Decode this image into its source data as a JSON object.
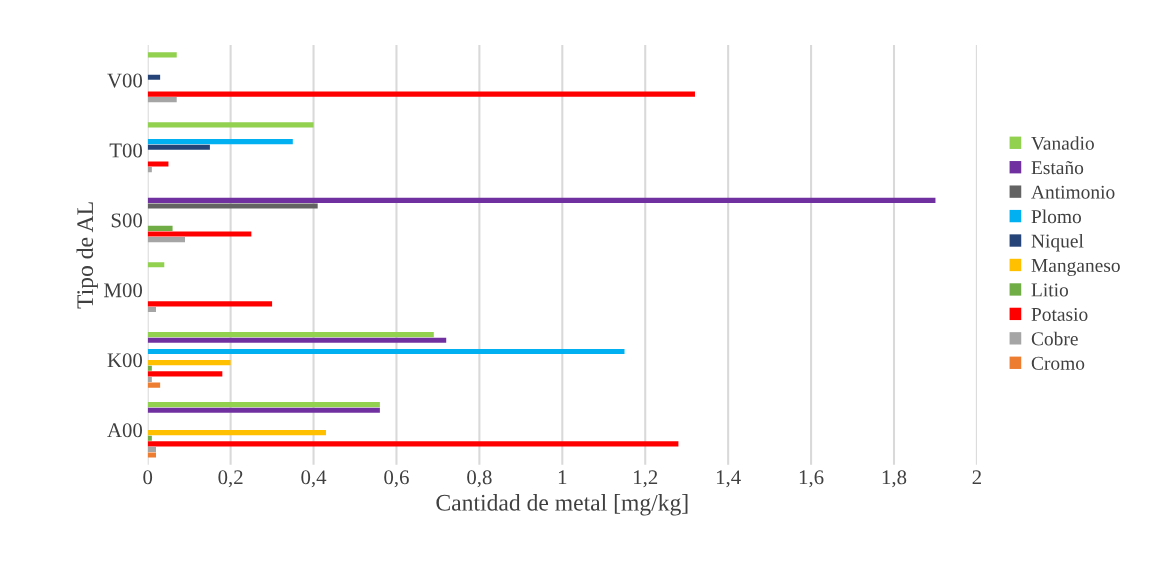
{
  "chart_data": {
    "type": "bar",
    "orientation": "horizontal",
    "xlabel": "Cantidad de metal [mg/kg]",
    "ylabel": "Tipo de AL",
    "categories": [
      "V00",
      "T00",
      "S00",
      "M00",
      "K00",
      "A00"
    ],
    "series": [
      {
        "name": "Vanadio",
        "color": "#92d050",
        "values": [
          0.07,
          0.4,
          null,
          0.04,
          0.69,
          0.56
        ]
      },
      {
        "name": "Estaño",
        "color": "#7030a0",
        "values": [
          null,
          null,
          1.9,
          null,
          0.72,
          0.56
        ]
      },
      {
        "name": "Antimonio",
        "color": "#636363",
        "values": [
          null,
          null,
          0.41,
          null,
          null,
          null
        ]
      },
      {
        "name": "Plomo",
        "color": "#00b0f0",
        "values": [
          null,
          0.35,
          null,
          null,
          1.15,
          null
        ]
      },
      {
        "name": "Niquel",
        "color": "#264478",
        "values": [
          0.03,
          0.15,
          null,
          null,
          null,
          null
        ]
      },
      {
        "name": "Manganeso",
        "color": "#ffc000",
        "values": [
          null,
          null,
          null,
          null,
          0.2,
          0.43
        ]
      },
      {
        "name": "Litio",
        "color": "#70ad47",
        "values": [
          null,
          null,
          0.06,
          null,
          0.01,
          0.01
        ]
      },
      {
        "name": "Potasio",
        "color": "#ff0000",
        "values": [
          1.32,
          0.05,
          0.25,
          0.3,
          0.18,
          1.28
        ]
      },
      {
        "name": "Cobre",
        "color": "#a5a5a5",
        "values": [
          0.07,
          0.01,
          0.09,
          0.02,
          0.01,
          0.02
        ]
      },
      {
        "name": "Cromo",
        "color": "#ed7d31",
        "values": [
          null,
          null,
          null,
          null,
          0.03,
          0.02
        ]
      }
    ],
    "xlim": [
      0,
      2
    ],
    "xticks": [
      0,
      {
        "value": 0.2,
        "label": "0,2"
      },
      {
        "value": 0.4,
        "label": "0,4"
      },
      {
        "value": 0.6,
        "label": "0,6"
      },
      {
        "value": 0.8,
        "label": "0,8"
      },
      1,
      {
        "value": 1.2,
        "label": "1,2"
      },
      {
        "value": 1.4,
        "label": "1,4"
      },
      {
        "value": 1.6,
        "label": "1,6"
      },
      {
        "value": 1.8,
        "label": "1,8"
      },
      2
    ],
    "grid": "x",
    "legend": "right"
  }
}
